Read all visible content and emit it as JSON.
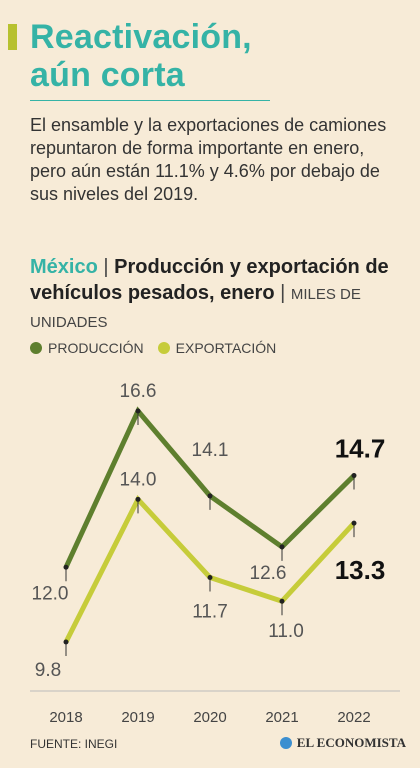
{
  "header": {
    "title_line1": "Reactivación,",
    "title_line2": "aún corta",
    "subtitle": "El ensamble y la exportaciones de camiones repuntaron de forma importante en enero, pero aún están 11.1% y 4.6% por debajo de sus niveles del 2019."
  },
  "chart_header": {
    "country": "México",
    "separator": "|",
    "title_part1": "Producción",
    "title_part2": "y exportación de vehículos pesados, enero",
    "units": "MILES DE UNIDADES"
  },
  "colors": {
    "production": "#5e7f2e",
    "export": "#c6cc3a",
    "title": "#35b3a6",
    "accent": "#b7c12f",
    "background": "#f7ebd7"
  },
  "chart_data": {
    "type": "line",
    "x": [
      "2018",
      "2019",
      "2020",
      "2021",
      "2022"
    ],
    "series": [
      {
        "name": "PRODUCCIÓN",
        "values": [
          12.0,
          16.6,
          14.1,
          12.6,
          14.7
        ],
        "labels": [
          "12.0",
          "16.6",
          "14.1",
          "12.6",
          "14.7"
        ]
      },
      {
        "name": "EXPORTACIÓN",
        "values": [
          9.8,
          14.0,
          11.7,
          11.0,
          13.3
        ],
        "labels": [
          "9.8",
          "14.0",
          "11.7",
          "11.0",
          "13.3"
        ]
      }
    ],
    "xlabel": "",
    "ylabel": "",
    "grid": false,
    "legend_placement": "top-left"
  },
  "footer": {
    "source": "FUENTE: INEGI",
    "brand": "EL ECONOMISTA"
  }
}
